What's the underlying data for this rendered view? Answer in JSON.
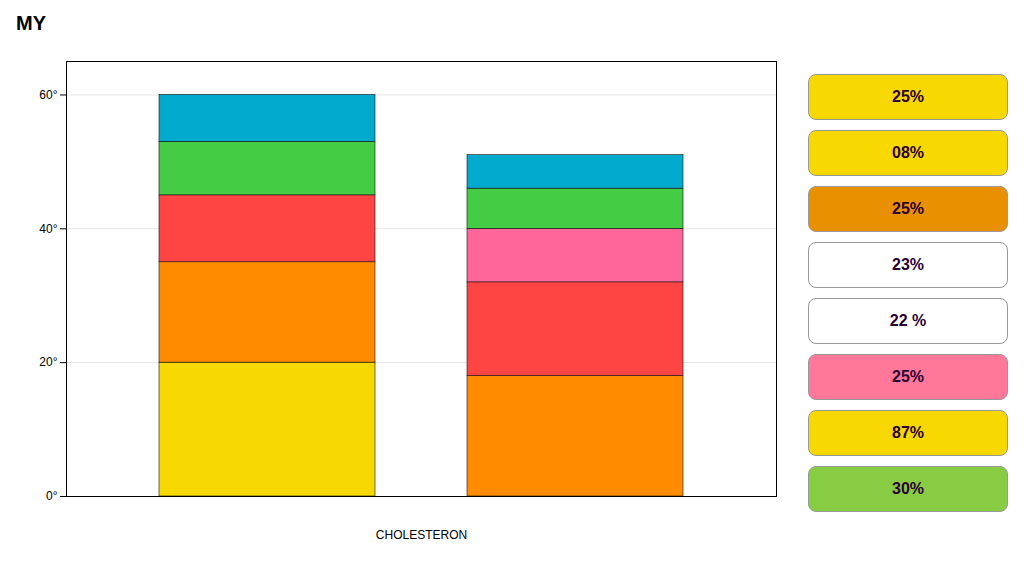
{
  "chart_data": {
    "type": "bar",
    "title": "MY",
    "xlabel": "CHOLESTERON",
    "categories": [
      null,
      null
    ],
    "series": [
      {
        "colors": [
          "#f7d800",
          "#ff8c00"
        ],
        "values": [
          20,
          18
        ]
      },
      {
        "colors": [
          "#ff8c00",
          "#ff4444"
        ],
        "values": [
          15,
          14
        ]
      },
      {
        "colors": [
          "#ff4444",
          "#ff6699"
        ],
        "values": [
          10,
          8
        ]
      },
      {
        "colors": [
          "#44cc44",
          "#44cc44"
        ],
        "values": [
          8,
          6
        ]
      },
      {
        "colors": [
          "#00aacc",
          "#00aacc"
        ],
        "values": [
          7,
          5
        ]
      }
    ],
    "stacked": true,
    "ylim": [
      0,
      65
    ],
    "yticks": [
      {
        "value": 0,
        "label": "0°"
      },
      {
        "value": 20,
        "label": "20°"
      },
      {
        "value": 40,
        "label": "40°"
      },
      {
        "value": 60,
        "label": "60°"
      }
    ],
    "grid": true,
    "tick_labels": "y",
    "annotations": [
      {
        "text": "25%",
        "color": "#f7d800"
      },
      {
        "text": "08%",
        "color": "#f7d800"
      },
      {
        "text": "25%",
        "color": "#e89000"
      },
      {
        "text": "23%",
        "color": "#ffffff"
      },
      {
        "text": "22 %",
        "color": "#ffffff"
      },
      {
        "text": "25%",
        "color": "#ff7799"
      },
      {
        "text": "87%",
        "color": "#f7d800"
      },
      {
        "text": "30%",
        "color": "#88cc44"
      }
    ]
  }
}
